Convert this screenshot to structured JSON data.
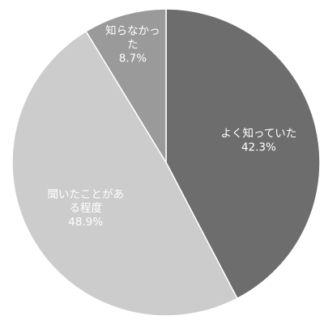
{
  "chart_data": {
    "type": "pie",
    "start": "top",
    "direction": "clockwise",
    "slices": [
      {
        "label_lines": [
          "よく知っていた"
        ],
        "value": 42.3,
        "value_text": "42.3%",
        "color": "#6d6d6d",
        "label_color": "#ffffff"
      },
      {
        "label_lines": [
          "聞いたことがあ",
          "る程度"
        ],
        "value": 48.9,
        "value_text": "48.9%",
        "color": "#cccccc",
        "label_color": "#ffffff"
      },
      {
        "label_lines": [
          "知らなかっ",
          "た"
        ],
        "value": 8.7,
        "value_text": "8.7%",
        "color": "#9a9a9a",
        "label_color": "#ffffff"
      }
    ]
  }
}
